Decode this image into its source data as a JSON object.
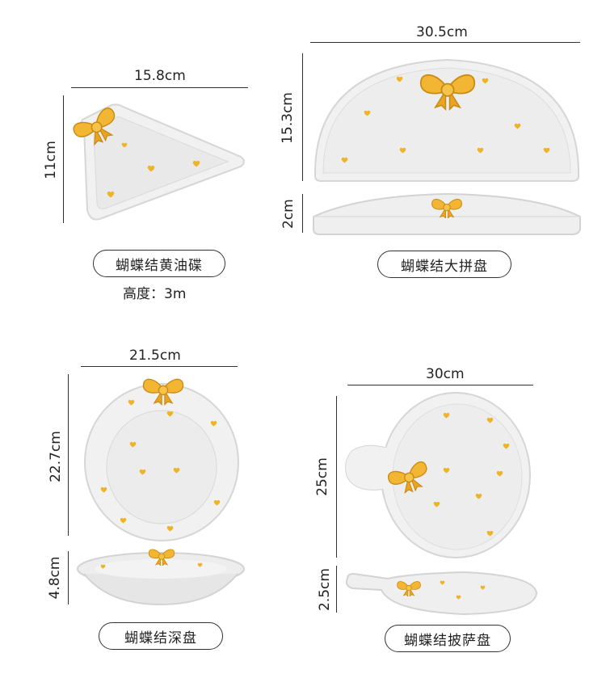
{
  "products": [
    {
      "name": "蝴蝶结黄油碟",
      "width": "15.8cm",
      "depth": "11cm",
      "note": "高度：3m"
    },
    {
      "name": "蝴蝶结大拼盘",
      "width": "30.5cm",
      "depth": "15.3cm",
      "height": "2cm"
    },
    {
      "name": "蝴蝶结深盘",
      "width": "21.5cm",
      "depth": "22.7cm",
      "height": "4.8cm"
    },
    {
      "name": "蝴蝶结披萨盘",
      "width": "30cm",
      "depth": "25cm",
      "height": "2.5cm"
    }
  ],
  "colors": {
    "bow": "#f2b534",
    "heart": "#efb327",
    "plate": "#f1f1f1",
    "rim": "#d9d9d9",
    "text": "#222222"
  }
}
